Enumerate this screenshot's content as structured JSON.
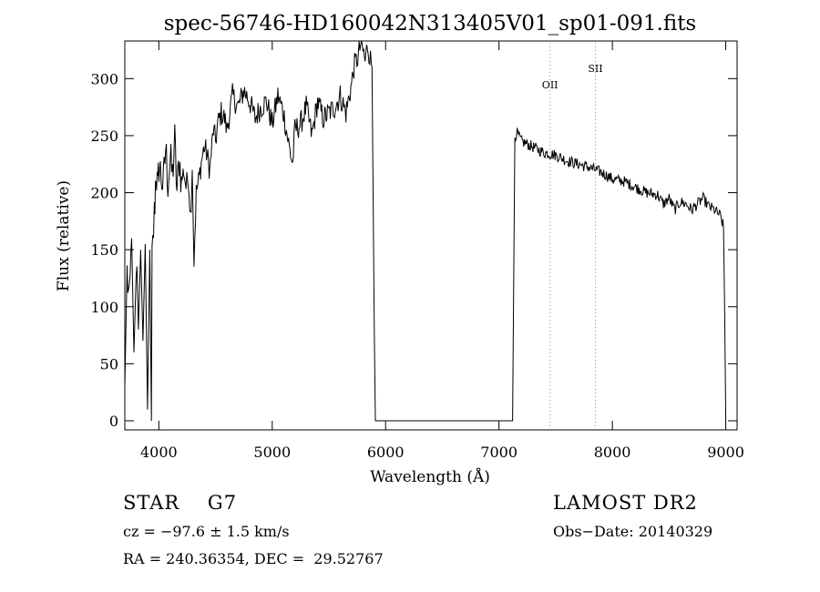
{
  "chart_data": {
    "type": "line",
    "title": "spec-56746-HD160042N313405V01_sp01-091.fits",
    "xlabel": "Wavelength (Å)",
    "ylabel": "Flux (relative)",
    "xlim": [
      3700,
      9100
    ],
    "ylim": [
      -8,
      333
    ],
    "xticks": [
      4000,
      5000,
      6000,
      7000,
      8000,
      9000
    ],
    "yticks": [
      0,
      50,
      100,
      150,
      200,
      250,
      300
    ],
    "grid": false,
    "lines": [
      {
        "label": "OII",
        "x": 7450
      },
      {
        "label": "SII",
        "x": 7850
      }
    ],
    "series": [
      {
        "x": [
          3700,
          3720,
          3740,
          3760,
          3780,
          3800,
          3820,
          3840,
          3860,
          3880,
          3900,
          3920,
          3935,
          3940,
          3960,
          3975,
          3990,
          4000,
          4020,
          4040,
          4060,
          4080,
          4100,
          4120,
          4140,
          4160,
          4180,
          4200,
          4220,
          4240,
          4260,
          4280,
          4295,
          4310,
          4330,
          4350,
          4380,
          4400,
          4420,
          4450,
          4480,
          4500,
          4520,
          4550,
          4580,
          4600,
          4650,
          4700,
          4750,
          4800,
          4850,
          4900,
          4950,
          5000,
          5050,
          5100,
          5150,
          5180,
          5200,
          5250,
          5300,
          5350,
          5400,
          5450,
          5500,
          5550,
          5600,
          5650,
          5700,
          5720,
          5740,
          5760,
          5780,
          5800,
          5820,
          5840,
          5860,
          5880,
          5890,
          5900,
          5910,
          6000,
          6500,
          7000,
          7120,
          7140,
          7160,
          7200,
          7300,
          7400,
          7500,
          7600,
          7700,
          7800,
          7900,
          8000,
          8100,
          8200,
          8300,
          8400,
          8450,
          8500,
          8550,
          8600,
          8650,
          8700,
          8750,
          8800,
          8850,
          8900,
          8950,
          8980,
          8990,
          9000
        ],
        "values": [
          30,
          130,
          100,
          160,
          60,
          140,
          80,
          150,
          70,
          155,
          10,
          150,
          0,
          140,
          180,
          220,
          200,
          225,
          215,
          205,
          240,
          210,
          228,
          215,
          245,
          200,
          230,
          210,
          220,
          205,
          215,
          180,
          220,
          140,
          200,
          210,
          230,
          240,
          235,
          220,
          255,
          245,
          260,
          270,
          265,
          255,
          285,
          275,
          290,
          280,
          265,
          275,
          280,
          260,
          285,
          270,
          240,
          225,
          255,
          260,
          275,
          250,
          280,
          265,
          270,
          275,
          285,
          270,
          295,
          310,
          315,
          320,
          330,
          325,
          315,
          330,
          320,
          310,
          200,
          80,
          0,
          0,
          0,
          0,
          0,
          250,
          252,
          245,
          240,
          235,
          233,
          228,
          225,
          222,
          218,
          212,
          210,
          205,
          200,
          198,
          190,
          195,
          185,
          192,
          190,
          185,
          190,
          195,
          188,
          185,
          180,
          170,
          100,
          0
        ]
      }
    ]
  },
  "info": {
    "object": "STAR    G7",
    "cz": "cz = −97.6 ± 1.5 km/s",
    "radec": "RA = 240.36354, DEC =  29.52767",
    "survey": "LAMOST DR2",
    "obsdate": "Obs−Date: 20140329"
  },
  "colors": {
    "axis": "#000000",
    "line": "#000000",
    "marker": "#c87878"
  }
}
